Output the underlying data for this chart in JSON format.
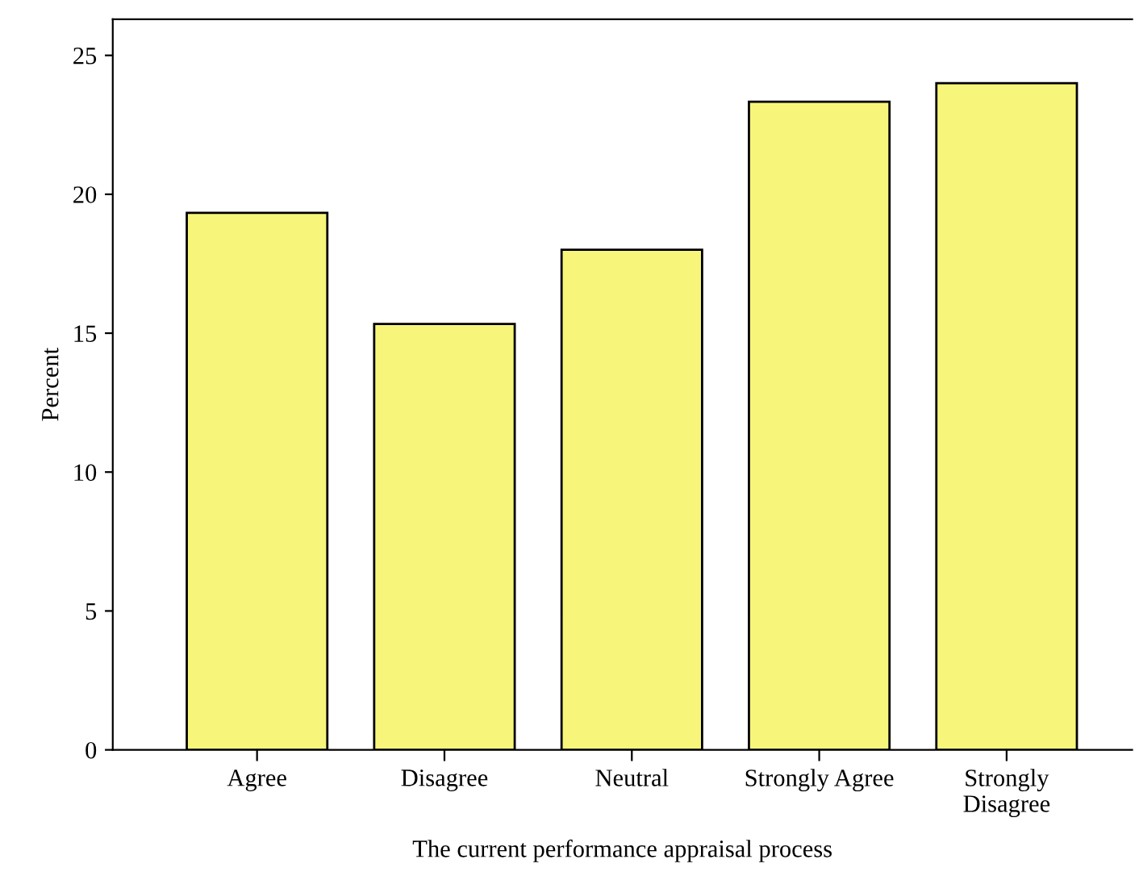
{
  "chart_data": {
    "type": "bar",
    "xlabel": "The current performance appraisal process",
    "ylabel": "Percent",
    "categories": [
      "Agree",
      "Disagree",
      "Neutral",
      "Strongly Agree",
      "Strongly\nDisagree"
    ],
    "values": [
      19.33,
      15.33,
      18.0,
      23.33,
      24.0
    ],
    "color": "#f8f67a",
    "ylim": [
      0,
      26.3
    ],
    "yticks": [
      0,
      5,
      10,
      15,
      20,
      25
    ],
    "grid": false,
    "legend": false
  }
}
